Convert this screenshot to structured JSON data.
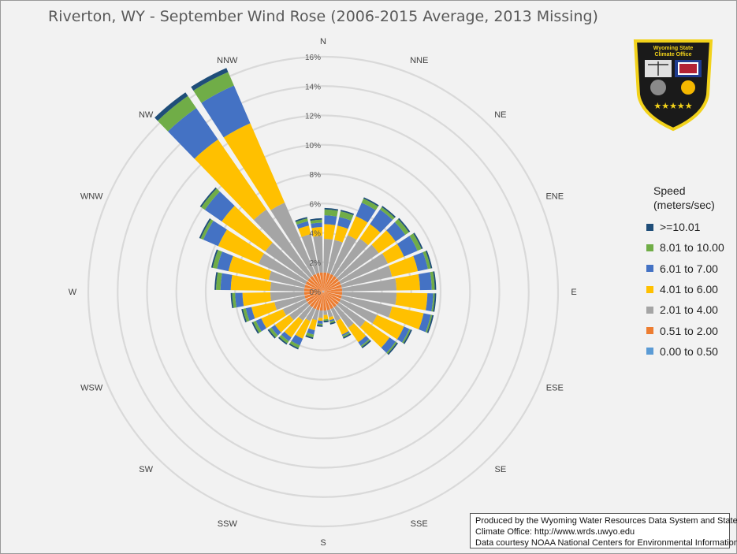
{
  "title": "Riverton, WY - September Wind Rose (2006-2015 Average, 2013 Missing)",
  "legend": {
    "title_line1": "Speed",
    "title_line2": "(meters/sec)",
    "items": [
      {
        "label": ">=10.01",
        "color": "#1f4e79"
      },
      {
        "label": "8.01 to 10.00",
        "color": "#70ad47"
      },
      {
        "label": "6.01 to 7.00",
        "color": "#4472c4"
      },
      {
        "label": "4.01 to 6.00",
        "color": "#ffc000"
      },
      {
        "label": "2.01 to 4.00",
        "color": "#a5a5a5"
      },
      {
        "label": "0.51 to 2.00",
        "color": "#ed7d31"
      },
      {
        "label": "0.00 to 0.50",
        "color": "#5b9bd5"
      }
    ]
  },
  "credit": {
    "line1": "Produced by the Wyoming Water Resources Data System and State",
    "line2": "Climate Office: http://www.wrds.uwyo.edu",
    "line3": "Data courtesy NOAA National Centers for Environmental Information"
  },
  "logo": {
    "line1": "Wyoming State",
    "line2": "Climate Office"
  },
  "chart_data": {
    "type": "radar-stacked-bar",
    "directions": [
      "N",
      "NNE",
      "NE",
      "ENE",
      "E",
      "ESE",
      "SE",
      "SSE",
      "S",
      "SSW",
      "SW",
      "WSW",
      "W",
      "WNW",
      "NW",
      "NNW"
    ],
    "r_ticks": [
      "0%",
      "2%",
      "4%",
      "6%",
      "8%",
      "10%",
      "12%",
      "14%",
      "16%"
    ],
    "rmax": 16,
    "categories": [
      "N",
      "N",
      "NNE",
      "NNE",
      "NE",
      "NE",
      "ENE",
      "ENE",
      "E",
      "E",
      "ESE",
      "ESE",
      "SE",
      "SE",
      "SSE",
      "SSE",
      "S",
      "S",
      "SSW",
      "SSW",
      "SW",
      "SW",
      "WSW",
      "WSW",
      "W",
      "W",
      "WNW",
      "WNW",
      "NW",
      "NW",
      "NNW",
      "NNW"
    ],
    "cumulative_series": [
      {
        "name": "0.00 to 0.50",
        "color": "#5b9bd5",
        "values": [
          0.05,
          0.05,
          0.05,
          0.05,
          0.05,
          0.05,
          0.05,
          0.05,
          0.05,
          0.05,
          0.05,
          0.05,
          0.05,
          0.05,
          0.05,
          0.05,
          0.05,
          0.05,
          0.05,
          0.05,
          0.05,
          0.05,
          0.05,
          0.05,
          0.05,
          0.05,
          0.05,
          0.05,
          0.05,
          0.05,
          0.05,
          0.05
        ]
      },
      {
        "name": "0.51 to 2.00",
        "color": "#ed7d31",
        "values": [
          1.3,
          1.3,
          1.3,
          1.3,
          1.3,
          1.3,
          1.3,
          1.3,
          1.3,
          1.3,
          1.3,
          1.3,
          1.3,
          1.3,
          1.3,
          1.3,
          1.3,
          1.3,
          1.3,
          1.3,
          1.3,
          1.3,
          1.3,
          1.3,
          1.3,
          1.3,
          1.3,
          1.3,
          1.3,
          1.3,
          1.3,
          1.3
        ]
      },
      {
        "name": "2.01 to 4.00",
        "color": "#a5a5a5",
        "values": [
          3.6,
          3.6,
          4.2,
          4.4,
          4.6,
          4.8,
          4.8,
          5.0,
          5.0,
          4.8,
          4.0,
          3.5,
          3.0,
          2.2,
          1.8,
          1.6,
          1.8,
          2.0,
          2.2,
          2.4,
          2.8,
          3.0,
          3.4,
          3.6,
          3.6,
          3.8,
          4.8,
          4.8,
          6.8,
          6.6,
          4.0,
          3.8
        ]
      },
      {
        "name": "4.01 to 6.00",
        "color": "#ffc000",
        "values": [
          4.6,
          4.6,
          5.6,
          5.6,
          6.0,
          6.0,
          6.6,
          6.6,
          7.1,
          7.0,
          6.0,
          5.5,
          4.2,
          3.2,
          2.0,
          1.9,
          2.0,
          2.7,
          3.5,
          3.8,
          4.0,
          4.6,
          5.0,
          5.5,
          6.3,
          6.6,
          7.8,
          8.4,
          12.6,
          12.5,
          4.6,
          4.4
        ]
      },
      {
        "name": "6.01 to 7.00",
        "color": "#4472c4",
        "values": [
          5.2,
          5.2,
          6.6,
          6.8,
          6.8,
          7.0,
          7.3,
          7.4,
          7.5,
          7.5,
          6.4,
          6.0,
          4.5,
          3.3,
          2.1,
          1.9,
          2.2,
          3.0,
          4.0,
          4.1,
          4.3,
          5.0,
          5.4,
          6.0,
          7.0,
          7.4,
          8.9,
          9.8,
          15.2,
          15.3,
          4.9,
          4.7
        ]
      },
      {
        "name": "8.01 to 10.00",
        "color": "#70ad47",
        "values": [
          5.6,
          5.6,
          6.9,
          7.0,
          7.1,
          7.3,
          7.5,
          7.6,
          7.6,
          7.6,
          6.5,
          6.1,
          4.6,
          3.4,
          2.2,
          2.0,
          2.3,
          3.2,
          4.2,
          4.3,
          4.5,
          5.2,
          5.6,
          6.2,
          7.3,
          7.7,
          9.1,
          10.1,
          16.2,
          16.3,
          5.1,
          4.9
        ]
      },
      {
        "name": ">=10.01",
        "color": "#1f4e79",
        "values": [
          5.7,
          5.7,
          7.0,
          7.1,
          7.2,
          7.4,
          7.6,
          7.7,
          7.7,
          7.7,
          6.6,
          6.2,
          4.7,
          3.5,
          2.3,
          2.1,
          2.4,
          3.3,
          4.3,
          4.4,
          4.6,
          5.3,
          5.7,
          6.3,
          7.4,
          7.8,
          9.2,
          10.2,
          16.5,
          16.6,
          5.2,
          5.0
        ]
      }
    ]
  }
}
